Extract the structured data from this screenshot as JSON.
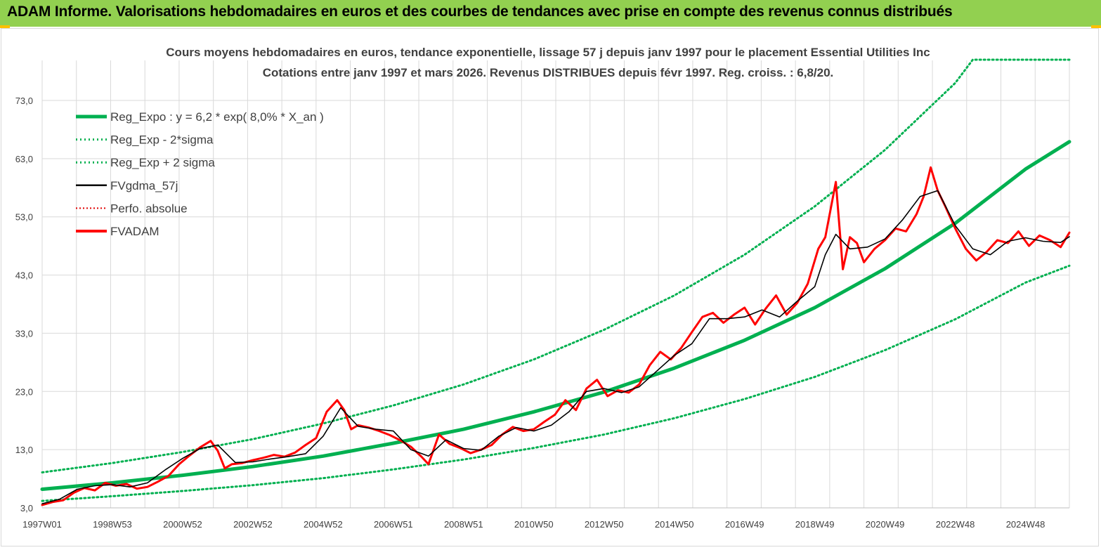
{
  "header": {
    "title": "ADAM Informe. Valorisations hebdomadaires en euros et des courbes de tendances avec prise en compte des revenus connus distribués"
  },
  "colors": {
    "banner": "#92d050",
    "accent": "#ffc000",
    "reg_expo": "#00b050",
    "sigma": "#00b050",
    "fvgdma": "#000000",
    "perfo": "#e00000",
    "fvadam": "#ff0000",
    "grid": "#d9d9d9"
  },
  "chart_data": {
    "type": "line",
    "title_line1": "Cours moyens hebdomadaires en euros, tendance exponentielle, lissage 57 j depuis janv 1997 pour le placement Essential Utilities Inc",
    "title_line2": "Cotations entre janv 1997 et mars 2026. Revenus DISTRIBUES depuis févr 1997. Reg. croiss. : 6,8/20.",
    "ylim": [
      3,
      80
    ],
    "y_ticks": [
      "3,0",
      "13,0",
      "23,0",
      "33,0",
      "43,0",
      "53,0",
      "63,0",
      "73,0"
    ],
    "y_tick_values": [
      3,
      13,
      23,
      33,
      43,
      53,
      63,
      73
    ],
    "x_range": [
      1997.0,
      2026.25
    ],
    "x_ticks": [
      "1997W01",
      "1998W53",
      "2000W52",
      "2002W52",
      "2004W52",
      "2006W51",
      "2008W51",
      "2010W50",
      "2012W50",
      "2014W50",
      "2016W49",
      "2018W49",
      "2020W49",
      "2022W48",
      "2024W48"
    ],
    "x_tick_values": [
      1997.0,
      1999.0,
      2001.0,
      2003.0,
      2005.0,
      2007.0,
      2009.0,
      2011.0,
      2013.0,
      2015.0,
      2017.0,
      2019.0,
      2021.0,
      2023.0,
      2025.0
    ],
    "grid": true,
    "legend_position": "top-left",
    "series": [
      {
        "name": "Reg_Expo : y = 6,2 * exp( 8,0% *  X_an )",
        "style": "solid-thick",
        "x": [
          1997.0,
          1999.0,
          2001.0,
          2003.0,
          2005.0,
          2007.0,
          2009.0,
          2011.0,
          2013.0,
          2015.0,
          2017.0,
          2019.0,
          2021.0,
          2023.0,
          2025.0,
          2026.25
        ],
        "values": [
          6.2,
          7.3,
          8.6,
          10.1,
          11.9,
          14.1,
          16.5,
          19.5,
          22.9,
          27.0,
          31.8,
          37.4,
          44.1,
          51.9,
          61.2,
          65.9
        ]
      },
      {
        "name": "Reg_Exp - 2*sigma",
        "style": "dotted",
        "x": [
          1997.0,
          1999.0,
          2001.0,
          2003.0,
          2005.0,
          2007.0,
          2009.0,
          2011.0,
          2013.0,
          2015.0,
          2017.0,
          2019.0,
          2021.0,
          2023.0,
          2025.0,
          2026.25
        ],
        "values": [
          4.2,
          5.0,
          5.9,
          6.9,
          8.1,
          9.6,
          11.3,
          13.3,
          15.6,
          18.4,
          21.7,
          25.5,
          30.1,
          35.4,
          41.7,
          44.6
        ]
      },
      {
        "name": "Reg_Exp + 2 sigma",
        "style": "dotted",
        "x": [
          1997.0,
          1999.0,
          2001.0,
          2003.0,
          2005.0,
          2007.0,
          2009.0,
          2011.0,
          2013.0,
          2015.0,
          2017.0,
          2019.0,
          2021.0,
          2023.0,
          2023.5,
          2026.25
        ],
        "values": [
          9.1,
          10.7,
          12.6,
          14.8,
          17.5,
          20.6,
          24.2,
          28.5,
          33.6,
          39.5,
          46.5,
          54.8,
          64.5,
          76.0,
          80.0,
          80.0
        ]
      },
      {
        "name": "FVgdma_57j",
        "style": "solid-thin",
        "x": [
          1997.0,
          1997.5,
          1998.0,
          1998.5,
          1999.0,
          1999.5,
          2000.0,
          2000.5,
          2001.0,
          2001.5,
          2002.0,
          2002.5,
          2003.0,
          2003.5,
          2004.0,
          2004.5,
          2005.0,
          2005.5,
          2006.0,
          2006.5,
          2007.0,
          2007.5,
          2008.0,
          2008.5,
          2009.0,
          2009.5,
          2010.0,
          2010.5,
          2011.0,
          2011.5,
          2012.0,
          2012.5,
          2013.0,
          2013.5,
          2014.0,
          2014.5,
          2015.0,
          2015.5,
          2016.0,
          2016.5,
          2017.0,
          2017.5,
          2018.0,
          2018.5,
          2019.0,
          2019.3,
          2019.6,
          2020.0,
          2020.5,
          2021.0,
          2021.5,
          2022.0,
          2022.5,
          2023.0,
          2023.5,
          2024.0,
          2024.5,
          2025.0,
          2025.5,
          2026.0,
          2026.25
        ],
        "values": [
          3.7,
          4.5,
          6.2,
          6.8,
          7.0,
          6.6,
          7.3,
          9.5,
          11.5,
          13.2,
          13.8,
          10.8,
          10.9,
          11.4,
          11.8,
          12.3,
          15.3,
          20.2,
          17.0,
          16.5,
          16.2,
          13.0,
          11.9,
          14.7,
          13.2,
          12.9,
          15.3,
          16.8,
          16.2,
          17.2,
          19.5,
          23.0,
          23.5,
          22.8,
          23.8,
          26.5,
          29.2,
          31.2,
          35.5,
          35.5,
          35.8,
          37.0,
          35.8,
          38.5,
          41.0,
          46.5,
          50.0,
          47.5,
          47.8,
          49.2,
          52.5,
          56.5,
          57.5,
          51.5,
          47.5,
          46.5,
          48.8,
          49.4,
          48.8,
          48.6,
          49.6
        ]
      },
      {
        "name": "Perfo. absolue",
        "style": "dotted",
        "x": [],
        "values": []
      },
      {
        "name": "FVADAM",
        "style": "solid-medium",
        "x": [
          1997.0,
          1997.3,
          1997.6,
          1997.9,
          1998.2,
          1998.5,
          1998.8,
          1999.1,
          1999.4,
          1999.7,
          2000.0,
          2000.3,
          2000.6,
          2000.9,
          2001.2,
          2001.5,
          2001.8,
          2002.0,
          2002.2,
          2002.4,
          2002.7,
          2003.0,
          2003.3,
          2003.6,
          2003.9,
          2004.2,
          2004.5,
          2004.8,
          2005.1,
          2005.4,
          2005.6,
          2005.8,
          2006.0,
          2006.3,
          2006.6,
          2006.9,
          2007.2,
          2007.5,
          2007.8,
          2008.0,
          2008.3,
          2008.6,
          2008.9,
          2009.2,
          2009.5,
          2009.8,
          2010.1,
          2010.4,
          2010.7,
          2011.0,
          2011.3,
          2011.6,
          2011.9,
          2012.2,
          2012.5,
          2012.8,
          2013.1,
          2013.4,
          2013.7,
          2014.0,
          2014.3,
          2014.6,
          2014.9,
          2015.2,
          2015.5,
          2015.8,
          2016.1,
          2016.4,
          2016.7,
          2017.0,
          2017.3,
          2017.6,
          2017.9,
          2018.2,
          2018.5,
          2018.8,
          2019.1,
          2019.3,
          2019.6,
          2019.8,
          2020.0,
          2020.2,
          2020.4,
          2020.7,
          2021.0,
          2021.3,
          2021.6,
          2021.9,
          2022.1,
          2022.3,
          2022.5,
          2022.7,
          2023.0,
          2023.3,
          2023.6,
          2023.9,
          2024.2,
          2024.5,
          2024.8,
          2025.1,
          2025.4,
          2025.7,
          2026.0,
          2026.25
        ],
        "values": [
          3.5,
          4.0,
          4.3,
          5.6,
          6.4,
          6.0,
          7.3,
          6.8,
          7.1,
          6.3,
          6.6,
          7.5,
          8.5,
          10.5,
          12.0,
          13.4,
          14.5,
          12.8,
          9.8,
          10.5,
          10.7,
          11.2,
          11.6,
          12.1,
          11.8,
          12.5,
          13.8,
          15.0,
          19.5,
          21.5,
          19.8,
          16.5,
          17.2,
          16.8,
          16.2,
          15.5,
          14.6,
          13.5,
          11.8,
          10.5,
          15.6,
          14.0,
          13.3,
          12.4,
          13.0,
          13.8,
          15.6,
          16.9,
          16.2,
          16.5,
          17.8,
          19.0,
          21.5,
          19.8,
          23.5,
          25.0,
          22.2,
          23.2,
          22.8,
          24.2,
          27.5,
          29.8,
          28.5,
          30.5,
          33.2,
          35.8,
          36.5,
          34.8,
          36.2,
          37.4,
          34.5,
          37.2,
          39.5,
          36.2,
          38.2,
          41.5,
          47.5,
          49.5,
          59.0,
          44.0,
          49.5,
          48.5,
          45.2,
          47.5,
          49.0,
          51.0,
          50.5,
          53.5,
          56.5,
          61.5,
          57.5,
          55.0,
          51.0,
          47.5,
          45.5,
          47.0,
          49.0,
          48.5,
          50.5,
          48.0,
          49.8,
          49.0,
          47.8,
          50.3
        ]
      }
    ]
  }
}
